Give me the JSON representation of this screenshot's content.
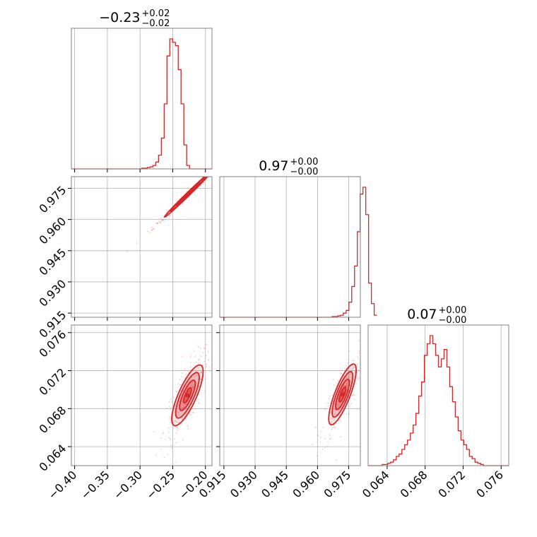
{
  "chart_data": {
    "type": "corner",
    "color": "#d62728",
    "grid": true,
    "parameters": [
      {
        "range": [
          -0.405,
          -0.19
        ],
        "ticks": [
          -0.4,
          -0.35,
          -0.3,
          -0.25,
          -0.2
        ],
        "tick_labels": [
          "−0.40",
          "−0.35",
          "−0.30",
          "−0.25",
          "−0.20"
        ]
      },
      {
        "range": [
          0.913,
          0.9806
        ],
        "ticks": [
          0.915,
          0.93,
          0.945,
          0.96,
          0.975
        ],
        "tick_labels": [
          "0.915",
          "0.930",
          "0.945",
          "0.960",
          "0.975"
        ]
      },
      {
        "range": [
          0.062,
          0.0768
        ],
        "ticks": [
          0.064,
          0.068,
          0.072,
          0.076
        ],
        "tick_labels": [
          "0.064",
          "0.068",
          "0.072",
          "0.076"
        ]
      }
    ],
    "titles": [
      {
        "value": "−0.23",
        "plus": "+0.02",
        "minus": "−0.02"
      },
      {
        "value": "0.97",
        "plus": "+0.00",
        "minus": "−0.00"
      },
      {
        "value": "0.07",
        "plus": "+0.00",
        "minus": "−0.00"
      }
    ],
    "histograms": [
      {
        "edges_start": -0.405,
        "bin_width": 0.0043,
        "counts": [
          0,
          0,
          0,
          0,
          0,
          0,
          0,
          0,
          0,
          0,
          0,
          0,
          0,
          0,
          0,
          0,
          0,
          0,
          0,
          0,
          0,
          0,
          0,
          0,
          0,
          1,
          1,
          2,
          3,
          5,
          10,
          20,
          45,
          95,
          165,
          190,
          185,
          180,
          145,
          95,
          35,
          5,
          0,
          0,
          0,
          0,
          0,
          0,
          0,
          0
        ]
      },
      {
        "edges_start": 0.913,
        "bin_width": 0.00135,
        "counts": [
          0,
          0,
          0,
          0,
          0,
          0,
          0,
          0,
          0,
          0,
          0,
          0,
          0,
          0,
          0,
          0,
          0,
          0,
          0,
          0,
          0,
          0,
          0,
          0,
          0,
          0,
          0,
          0,
          0,
          0,
          0,
          0,
          0,
          0,
          0,
          0,
          0,
          0,
          0,
          0,
          1,
          1,
          2,
          3,
          6,
          10,
          22,
          45,
          75,
          125,
          180,
          190,
          150,
          50,
          20,
          3
        ]
      },
      {
        "edges_start": 0.062,
        "bin_width": 0.000296,
        "counts": [
          0,
          0,
          0,
          0,
          0,
          1,
          1,
          2,
          3,
          5,
          8,
          10,
          14,
          18,
          22,
          28,
          35,
          45,
          60,
          72,
          95,
          105,
          112,
          105,
          95,
          85,
          92,
          100,
          85,
          68,
          55,
          42,
          30,
          22,
          18,
          14,
          8,
          6,
          3,
          2,
          1,
          0,
          0,
          0,
          0,
          0,
          0,
          0,
          0,
          0
        ]
      }
    ],
    "contours": {
      "pair_1_0": {
        "mean": [
          -0.2265,
          0.9722
        ],
        "sigma": [
          0.018,
          0.0055
        ],
        "rho": 0.995
      },
      "pair_2_0": {
        "mean": [
          -0.2275,
          0.0694
        ],
        "sigma": [
          0.012,
          0.0016
        ],
        "rho": 0.78
      },
      "pair_2_1": {
        "mean": [
          0.972,
          0.0695
        ],
        "sigma": [
          0.0033,
          0.0016
        ],
        "rho": 0.8
      },
      "levels": [
        0.5,
        1.0,
        1.5,
        2.0
      ]
    }
  }
}
